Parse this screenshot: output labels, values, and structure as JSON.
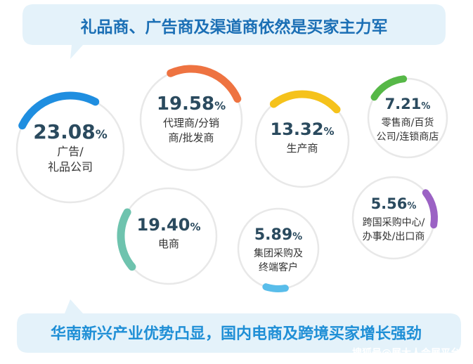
{
  "header": {
    "title": "礼品商、广告商及渠道商依然是买家主力军"
  },
  "footer": {
    "title": "华南新兴产业优势凸显，国内电商及跨境买家增长强劲",
    "watermark": "搜狐号@展大人会展平台"
  },
  "colors": {
    "banner_bg": "#e4f2fa",
    "banner_text": "#1b6fb5",
    "ring": "#e8e8e8",
    "footer_text": "#1f8fd6"
  },
  "chart_data": {
    "type": "pie",
    "unit": "%",
    "categories": [
      {
        "label_lines": [
          "广告/",
          "礼品公司"
        ],
        "value": 23.08,
        "color": "#1f8ee0"
      },
      {
        "label_lines": [
          "代理商/分销",
          "商/批发商"
        ],
        "value": 19.58,
        "color": "#ee7341"
      },
      {
        "label_lines": [
          "生产商"
        ],
        "value": 13.32,
        "color": "#f5c21b"
      },
      {
        "label_lines": [
          "零售商/百货",
          "公司/连锁商店"
        ],
        "value": 7.21,
        "color": "#56b847"
      },
      {
        "label_lines": [
          "电商"
        ],
        "value": 19.4,
        "color": "#6ec3ae"
      },
      {
        "label_lines": [
          "集团采购及",
          "终端客户"
        ],
        "value": 5.89,
        "color": "#59bdea"
      },
      {
        "label_lines": [
          "跨国采购中心/",
          "办事处/出口商"
        ],
        "value": 5.56,
        "color": "#9b62c4"
      }
    ]
  }
}
